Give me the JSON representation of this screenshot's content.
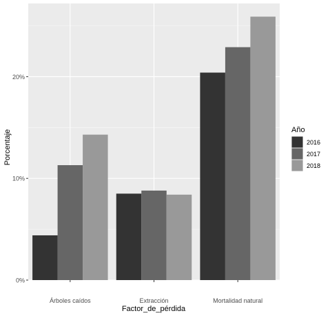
{
  "colors": {
    "panel_bg": "#ebebeb",
    "grid_major": "#ffffff",
    "text": "#4d4d4d",
    "title_text": "#000000"
  },
  "chart_data": {
    "type": "bar",
    "xlabel": "Factor_de_pérdida",
    "ylabel": "Porcentaje",
    "categories": [
      "Árboles caídos",
      "Extracción",
      "Mortalidad natural"
    ],
    "series": [
      {
        "name": "2016",
        "color": "#333333",
        "values": [
          4.4,
          8.5,
          20.4
        ]
      },
      {
        "name": "2017",
        "color": "#666666",
        "values": [
          11.3,
          8.8,
          22.9
        ]
      },
      {
        "name": "2018",
        "color": "#999999",
        "values": [
          14.3,
          8.4,
          25.9
        ]
      }
    ],
    "y_ticks": [
      0,
      10,
      20
    ],
    "y_tick_labels": [
      "0%",
      "10%",
      "20%"
    ],
    "ylim": [
      0,
      27.2
    ],
    "grid": true,
    "legend_title": "Año",
    "legend_position": "right"
  }
}
